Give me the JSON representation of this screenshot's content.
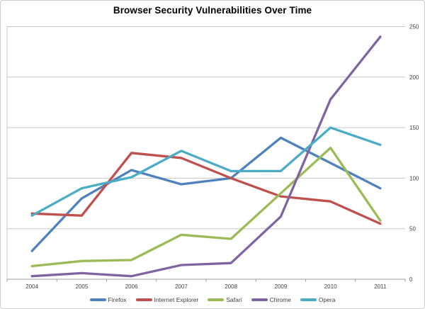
{
  "title": "Browser Security Vulnerabilities Over Time",
  "axis": {
    "grid_color": "#c6c6c6",
    "axis_color": "#9b9b9b",
    "label_color": "#3f3f3f"
  },
  "chart_data": {
    "type": "line",
    "title": "Browser Security Vulnerabilities Over Time",
    "categories": [
      "2004",
      "2005",
      "2006",
      "2007",
      "2008",
      "2009",
      "2010",
      "2011"
    ],
    "series": [
      {
        "name": "Firefox",
        "color": "#4F81BD",
        "values": [
          28,
          80,
          108,
          94,
          100,
          140,
          115,
          90
        ]
      },
      {
        "name": "Internet Explorer",
        "color": "#C0504D",
        "values": [
          65,
          63,
          125,
          120,
          100,
          82,
          77,
          55
        ]
      },
      {
        "name": "Safari",
        "color": "#9BBB59",
        "values": [
          13,
          18,
          19,
          44,
          40,
          85,
          130,
          58
        ]
      },
      {
        "name": "Chrome",
        "color": "#8064A2",
        "values": [
          3,
          6,
          3,
          14,
          16,
          62,
          178,
          240
        ]
      },
      {
        "name": "Opera",
        "color": "#4BACC6",
        "values": [
          63,
          90,
          101,
          127,
          107,
          107,
          150,
          133
        ]
      }
    ],
    "y_ticks": [
      0,
      50,
      100,
      150,
      200,
      250
    ],
    "ylim": [
      0,
      250
    ],
    "xlabel": "",
    "ylabel": "",
    "grid": true,
    "y_axis_side": "right",
    "legend_position": "bottom"
  }
}
